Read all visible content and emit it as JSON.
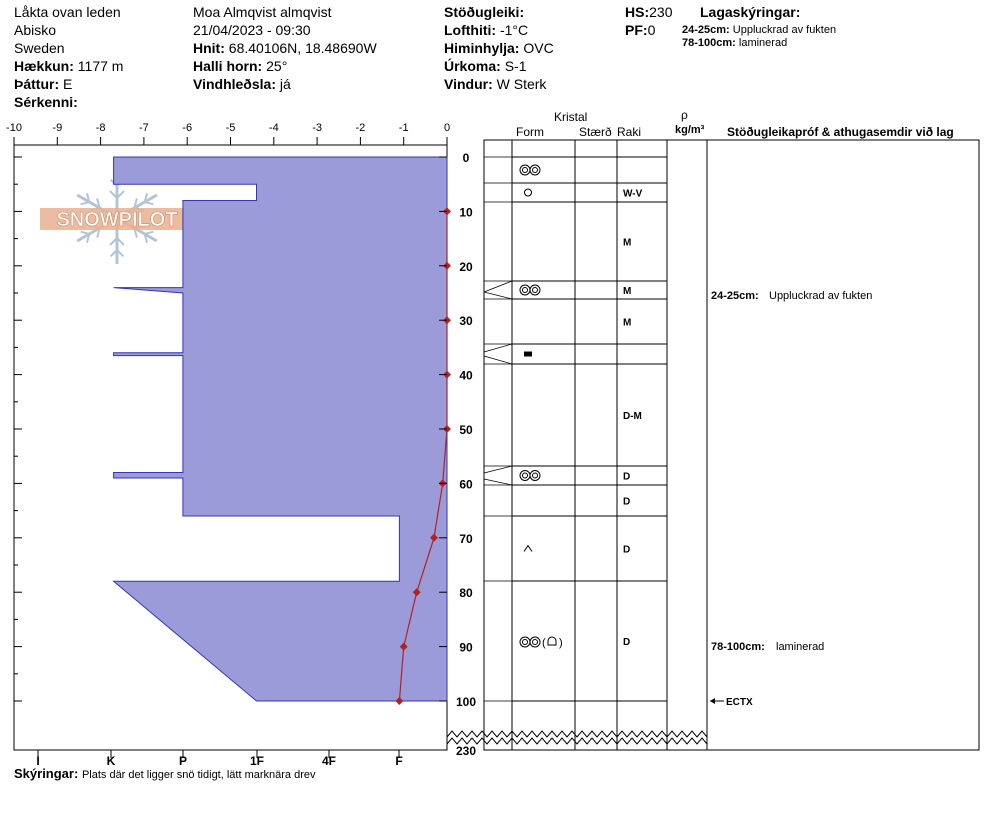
{
  "header": {
    "location": [
      "Låkta ovan leden",
      "Abisko",
      "Sweden"
    ],
    "elevation_label": "Hækkun:",
    "elevation_value": "1177 m",
    "aspect_label": "Þáttur:",
    "aspect_value": "E",
    "specifics_label": "Sérkenni:",
    "observer": "Moa Almqvist almqvist",
    "datetime": "21/04/2023 - 09:30",
    "coords_label": "Hnit:",
    "coords_value": "68.40106N, 18.48690W",
    "slope_label": "Halli horn:",
    "slope_value": "25°",
    "wind_loading_label": "Vindhleðsla:",
    "wind_loading_value": "já",
    "stability_label": "Stöðugleiki:",
    "air_temp_label": "Lofthiti:",
    "air_temp_value": "-1°C",
    "sky_label": "Himinhylja:",
    "sky_value": "OVC",
    "precip_label": "Úrkoma:",
    "precip_value": "S-1",
    "wind_label": "Vindur:",
    "wind_value": "W Sterk",
    "hs_label": "HS:",
    "hs_value": "230",
    "pf_label": "PF:",
    "pf_value": "0",
    "layer_notes_title": "Lagaskýringar:",
    "layer_notes": [
      {
        "range": "24-25cm:",
        "text": "Uppluckrad av fukten"
      },
      {
        "range": "78-100cm:",
        "text": "laminerad"
      }
    ],
    "logo_text": "SNOWPILOT"
  },
  "columns": {
    "crystal": "Kristal",
    "form": "Form",
    "size": "Stærð",
    "wetness": "Raki",
    "density_symbol": "ρ",
    "density_unit": "kg/m³",
    "tests": "Stöðugleikapróf & athugasemdir við lag"
  },
  "footer": {
    "label": "Skýringar:",
    "text": "Plats där det ligger snö tidigt, lätt marknära drev"
  },
  "chart_data": {
    "type": "snow-profile",
    "temperature_axis": {
      "ticks": [
        "-10",
        "-9",
        "-8",
        "-7",
        "-6",
        "-5",
        "-4",
        "-3",
        "-2",
        "-1",
        "0"
      ],
      "range": [
        -10,
        0
      ]
    },
    "hardness_axis": {
      "ticks": [
        "I",
        "K",
        "P",
        "1F",
        "4F",
        "F"
      ]
    },
    "depth_axis": {
      "ticks": [
        "0",
        "10",
        "20",
        "30",
        "40",
        "50",
        "60",
        "70",
        "80",
        "90",
        "100"
      ],
      "bottom_label": "230",
      "range": [
        0,
        100
      ]
    },
    "temperature_profile": [
      {
        "depth": 10,
        "temp": 0
      },
      {
        "depth": 20,
        "temp": 0
      },
      {
        "depth": 30,
        "temp": 0
      },
      {
        "depth": 40,
        "temp": 0
      },
      {
        "depth": 50,
        "temp": 0
      },
      {
        "depth": 60,
        "temp": -0.1
      },
      {
        "depth": 70,
        "temp": -0.3
      },
      {
        "depth": 80,
        "temp": -0.7
      },
      {
        "depth": 90,
        "temp": -1.0
      },
      {
        "depth": 100,
        "temp": -1.1
      }
    ],
    "hardness_profile_temp_units": [
      [
        -7.7,
        0
      ],
      [
        -7.7,
        5
      ],
      [
        -4.4,
        5
      ],
      [
        -4.4,
        8
      ],
      [
        -6.1,
        8
      ],
      [
        -6.1,
        24
      ],
      [
        -7.7,
        24
      ],
      [
        -6.1,
        25
      ],
      [
        -6.1,
        36
      ],
      [
        -7.7,
        36
      ],
      [
        -7.7,
        36.5
      ],
      [
        -6.1,
        36.5
      ],
      [
        -6.1,
        58
      ],
      [
        -7.7,
        58
      ],
      [
        -7.7,
        59
      ],
      [
        -6.1,
        59
      ],
      [
        -6.1,
        66
      ],
      [
        -1.1,
        66
      ],
      [
        -1.1,
        78
      ],
      [
        -7.7,
        78
      ],
      [
        -4.4,
        100
      ],
      [
        0,
        100
      ],
      [
        0,
        0
      ]
    ],
    "layers": [
      {
        "top": 0,
        "bottom": 5,
        "grain": "melt-forms",
        "wetness": ""
      },
      {
        "top": 5,
        "bottom": 8,
        "grain": "rounded",
        "wetness": "W-V"
      },
      {
        "top": 8,
        "bottom": 24,
        "grain": "",
        "wetness": "M"
      },
      {
        "top": 24,
        "bottom": 25,
        "grain": "melt-forms",
        "wetness": "M"
      },
      {
        "top": 25,
        "bottom": 36,
        "grain": "",
        "wetness": "M"
      },
      {
        "top": 36,
        "bottom": 38,
        "grain": "ice",
        "wetness": ""
      },
      {
        "top": 38,
        "bottom": 57,
        "grain": "",
        "wetness": "D-M"
      },
      {
        "top": 57,
        "bottom": 61,
        "grain": "melt-forms",
        "wetness": "D"
      },
      {
        "top": 61,
        "bottom": 66,
        "grain": "",
        "wetness": "D"
      },
      {
        "top": 66,
        "bottom": 78,
        "grain": "depth-hoar",
        "wetness": "D"
      },
      {
        "top": 78,
        "bottom": 100,
        "grain": "melt-forms (mf-crust)",
        "wetness": "D"
      }
    ],
    "comments": [
      {
        "depth": 25,
        "range": "24-25cm:",
        "text": "Uppluckrad av fukten"
      },
      {
        "depth": 90,
        "range": "78-100cm:",
        "text": "laminerad"
      }
    ],
    "test_marker": {
      "depth": 100,
      "label": "ECTX"
    },
    "colors": {
      "hardness_fill": "#9b9bd9",
      "hardness_stroke": "#3535b5",
      "temperature": "#b22222"
    }
  }
}
